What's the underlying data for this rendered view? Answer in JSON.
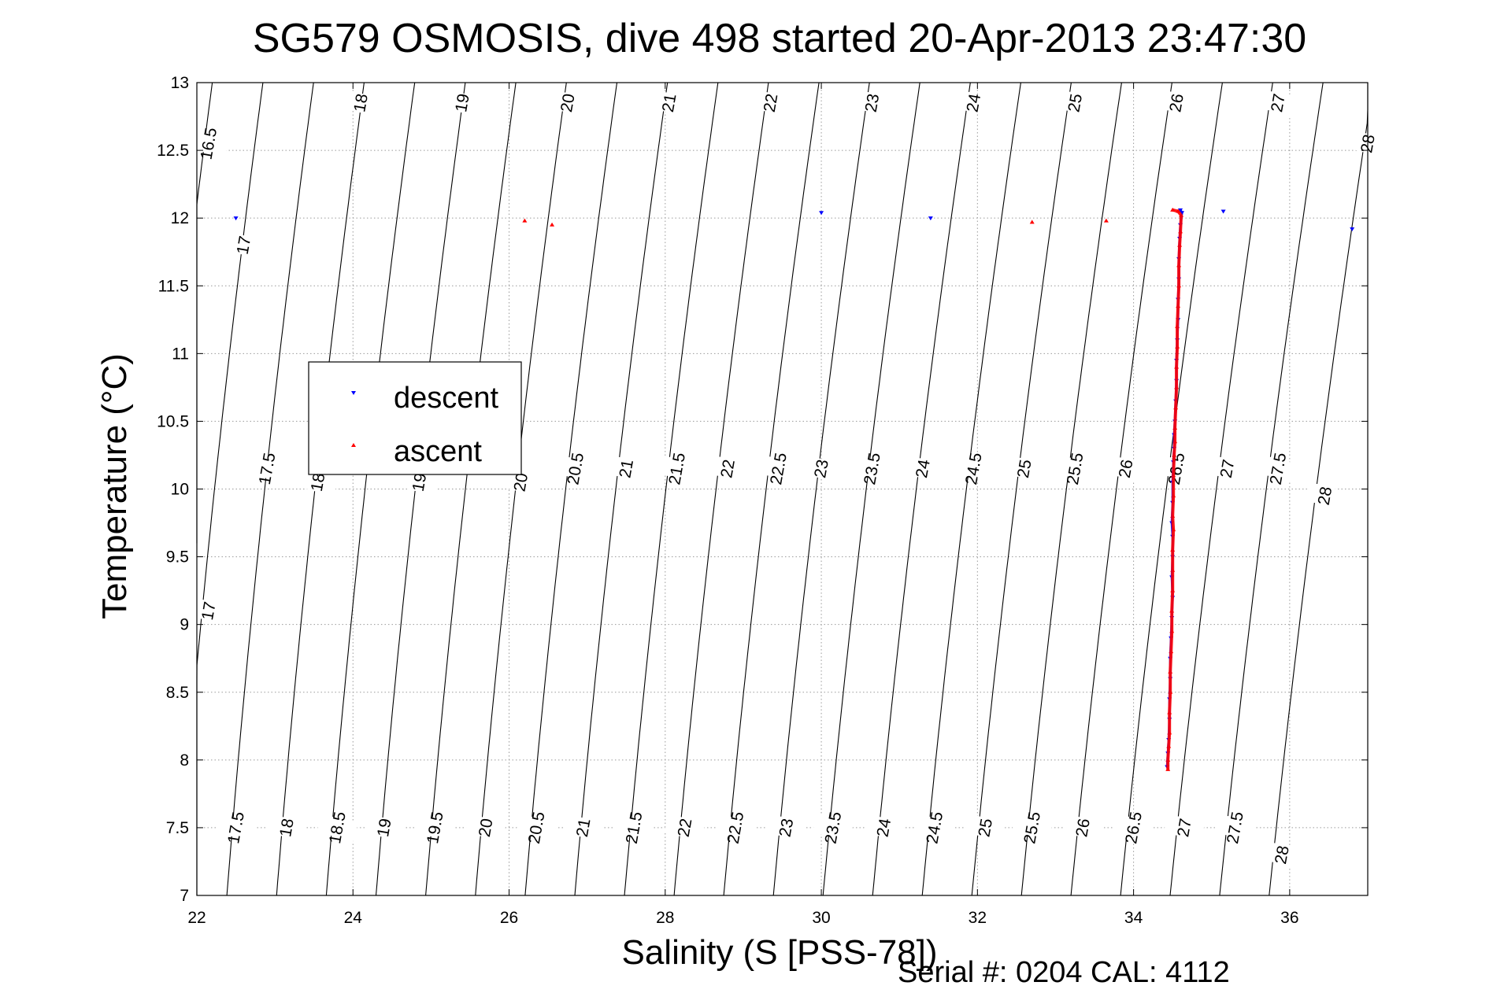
{
  "chart_data": {
    "type": "scatter",
    "title": "SG579 OSMOSIS, dive 498 started 20-Apr-2013 23:47:30",
    "xlabel": "Salinity (S [PSS-78])",
    "ylabel": "Temperature (°C)",
    "xlim": [
      22,
      37
    ],
    "ylim": [
      7,
      13
    ],
    "xticks": [
      22,
      24,
      26,
      28,
      30,
      32,
      34,
      36
    ],
    "yticks": [
      7,
      7.5,
      8,
      8.5,
      9,
      9.5,
      10,
      10.5,
      11,
      11.5,
      12,
      12.5,
      13
    ],
    "xtick_labels": [
      "22",
      "24",
      "26",
      "28",
      "30",
      "32",
      "34",
      "36"
    ],
    "ytick_labels": [
      "7",
      "7.5",
      "8",
      "8.5",
      "9",
      "9.5",
      "10",
      "10.5",
      "11",
      "11.5",
      "12",
      "12.5",
      "13"
    ],
    "grid": true,
    "legend_position": "upper-left",
    "density_contours": {
      "levels": [
        17,
        17.5,
        18,
        18.5,
        19,
        19.5,
        20,
        20.5,
        21,
        21.5,
        22,
        22.5,
        23,
        23.5,
        24,
        24.5,
        25,
        25.5,
        26,
        26.5,
        27,
        27.5,
        28
      ],
      "labels": [
        {
          "text": "16.5",
          "s": 22.15,
          "t": 12.55
        },
        {
          "text": "17",
          "s": 22.6,
          "t": 11.8
        },
        {
          "text": "18",
          "s": 24.1,
          "t": 12.85
        },
        {
          "text": "19",
          "s": 25.4,
          "t": 12.85
        },
        {
          "text": "20",
          "s": 26.75,
          "t": 12.85
        },
        {
          "text": "21",
          "s": 28.05,
          "t": 12.85
        },
        {
          "text": "22",
          "s": 29.35,
          "t": 12.85
        },
        {
          "text": "23",
          "s": 30.65,
          "t": 12.85
        },
        {
          "text": "24",
          "s": 31.95,
          "t": 12.85
        },
        {
          "text": "25",
          "s": 33.25,
          "t": 12.85
        },
        {
          "text": "26",
          "s": 34.55,
          "t": 12.85
        },
        {
          "text": "27",
          "s": 35.85,
          "t": 12.85
        },
        {
          "text": "28",
          "s": 37.0,
          "t": 12.55
        },
        {
          "text": "17.5",
          "s": 22.9,
          "t": 10.15
        },
        {
          "text": "18",
          "s": 23.55,
          "t": 10.05
        },
        {
          "text": "19",
          "s": 24.85,
          "t": 10.05
        },
        {
          "text": "20",
          "s": 26.15,
          "t": 10.05
        },
        {
          "text": "20.5",
          "s": 26.85,
          "t": 10.15
        },
        {
          "text": "21",
          "s": 27.5,
          "t": 10.15
        },
        {
          "text": "21.5",
          "s": 28.15,
          "t": 10.15
        },
        {
          "text": "22",
          "s": 28.8,
          "t": 10.15
        },
        {
          "text": "22.5",
          "s": 29.45,
          "t": 10.15
        },
        {
          "text": "23",
          "s": 30.0,
          "t": 10.15
        },
        {
          "text": "23.5",
          "s": 30.65,
          "t": 10.15
        },
        {
          "text": "24",
          "s": 31.3,
          "t": 10.15
        },
        {
          "text": "24.5",
          "s": 31.95,
          "t": 10.15
        },
        {
          "text": "25",
          "s": 32.6,
          "t": 10.15
        },
        {
          "text": "25.5",
          "s": 33.25,
          "t": 10.15
        },
        {
          "text": "26",
          "s": 33.9,
          "t": 10.15
        },
        {
          "text": "26.5",
          "s": 34.55,
          "t": 10.15
        },
        {
          "text": "27",
          "s": 35.2,
          "t": 10.15
        },
        {
          "text": "27.5",
          "s": 35.85,
          "t": 10.15
        },
        {
          "text": "28",
          "s": 36.45,
          "t": 9.95
        },
        {
          "text": "17",
          "s": 22.15,
          "t": 9.1
        },
        {
          "text": "17.5",
          "s": 22.5,
          "t": 7.5
        },
        {
          "text": "18",
          "s": 23.15,
          "t": 7.5
        },
        {
          "text": "18.5",
          "s": 23.8,
          "t": 7.5
        },
        {
          "text": "19",
          "s": 24.4,
          "t": 7.5
        },
        {
          "text": "19.5",
          "s": 25.05,
          "t": 7.5
        },
        {
          "text": "20",
          "s": 25.7,
          "t": 7.5
        },
        {
          "text": "20.5",
          "s": 26.35,
          "t": 7.5
        },
        {
          "text": "21",
          "s": 26.95,
          "t": 7.5
        },
        {
          "text": "21.5",
          "s": 27.6,
          "t": 7.5
        },
        {
          "text": "22",
          "s": 28.25,
          "t": 7.5
        },
        {
          "text": "22.5",
          "s": 28.9,
          "t": 7.5
        },
        {
          "text": "23",
          "s": 29.55,
          "t": 7.5
        },
        {
          "text": "23.5",
          "s": 30.15,
          "t": 7.5
        },
        {
          "text": "24",
          "s": 30.8,
          "t": 7.5
        },
        {
          "text": "24.5",
          "s": 31.45,
          "t": 7.5
        },
        {
          "text": "25",
          "s": 32.1,
          "t": 7.5
        },
        {
          "text": "25.5",
          "s": 32.7,
          "t": 7.5
        },
        {
          "text": "26",
          "s": 33.35,
          "t": 7.5
        },
        {
          "text": "26.5",
          "s": 34.0,
          "t": 7.5
        },
        {
          "text": "27",
          "s": 34.65,
          "t": 7.5
        },
        {
          "text": "27.5",
          "s": 35.3,
          "t": 7.5
        },
        {
          "text": "28",
          "s": 35.9,
          "t": 7.3
        }
      ]
    },
    "series": [
      {
        "name": "descent",
        "color": "#0000ff",
        "marker": "triangle-down",
        "points": [
          [
            22.5,
            12.0
          ],
          [
            30.0,
            12.04
          ],
          [
            31.4,
            12.0
          ],
          [
            35.15,
            12.05
          ],
          [
            36.8,
            11.92
          ],
          [
            34.6,
            12.06
          ],
          [
            34.62,
            12.04
          ],
          [
            34.6,
            11.95
          ],
          [
            34.59,
            11.85
          ],
          [
            34.58,
            11.7
          ],
          [
            34.58,
            11.55
          ],
          [
            34.57,
            11.4
          ],
          [
            34.57,
            11.25
          ],
          [
            34.56,
            11.1
          ],
          [
            34.55,
            10.95
          ],
          [
            34.55,
            10.8
          ],
          [
            34.54,
            10.65
          ],
          [
            34.53,
            10.5
          ],
          [
            34.52,
            10.4
          ],
          [
            34.52,
            10.3
          ],
          [
            34.51,
            10.2
          ],
          [
            34.5,
            10.05
          ],
          [
            34.5,
            9.9
          ],
          [
            34.49,
            9.75
          ],
          [
            34.5,
            9.65
          ],
          [
            34.5,
            9.5
          ],
          [
            34.49,
            9.35
          ],
          [
            34.5,
            9.2
          ],
          [
            34.49,
            9.05
          ],
          [
            34.48,
            8.9
          ],
          [
            34.47,
            8.75
          ],
          [
            34.47,
            8.6
          ],
          [
            34.46,
            8.45
          ],
          [
            34.46,
            8.3
          ],
          [
            34.45,
            8.15
          ],
          [
            34.44,
            8.05
          ],
          [
            34.43,
            7.95
          ]
        ]
      },
      {
        "name": "ascent",
        "color": "#ff0000",
        "marker": "triangle-up",
        "points": [
          [
            26.2,
            11.98
          ],
          [
            26.55,
            11.95
          ],
          [
            32.7,
            11.97
          ],
          [
            33.65,
            11.98
          ],
          [
            34.5,
            12.06
          ],
          [
            34.57,
            12.05
          ],
          [
            34.61,
            12.02
          ],
          [
            34.6,
            11.9
          ],
          [
            34.59,
            11.8
          ],
          [
            34.58,
            11.65
          ],
          [
            34.58,
            11.5
          ],
          [
            34.57,
            11.35
          ],
          [
            34.56,
            11.2
          ],
          [
            34.56,
            11.05
          ],
          [
            34.55,
            10.9
          ],
          [
            34.55,
            10.75
          ],
          [
            34.54,
            10.6
          ],
          [
            34.53,
            10.45
          ],
          [
            34.53,
            10.35
          ],
          [
            34.52,
            10.25
          ],
          [
            34.51,
            10.1
          ],
          [
            34.51,
            9.95
          ],
          [
            34.5,
            9.8
          ],
          [
            34.51,
            9.7
          ],
          [
            34.5,
            9.55
          ],
          [
            34.5,
            9.4
          ],
          [
            34.5,
            9.25
          ],
          [
            34.49,
            9.1
          ],
          [
            34.49,
            8.95
          ],
          [
            34.48,
            8.8
          ],
          [
            34.47,
            8.65
          ],
          [
            34.47,
            8.5
          ],
          [
            34.46,
            8.35
          ],
          [
            34.46,
            8.2
          ],
          [
            34.45,
            8.1
          ],
          [
            34.44,
            8.0
          ],
          [
            34.44,
            7.93
          ]
        ]
      }
    ]
  },
  "legend": {
    "descent_label": "descent",
    "ascent_label": "ascent"
  },
  "footer": {
    "text": "Serial #: 0204  CAL: 4112"
  }
}
